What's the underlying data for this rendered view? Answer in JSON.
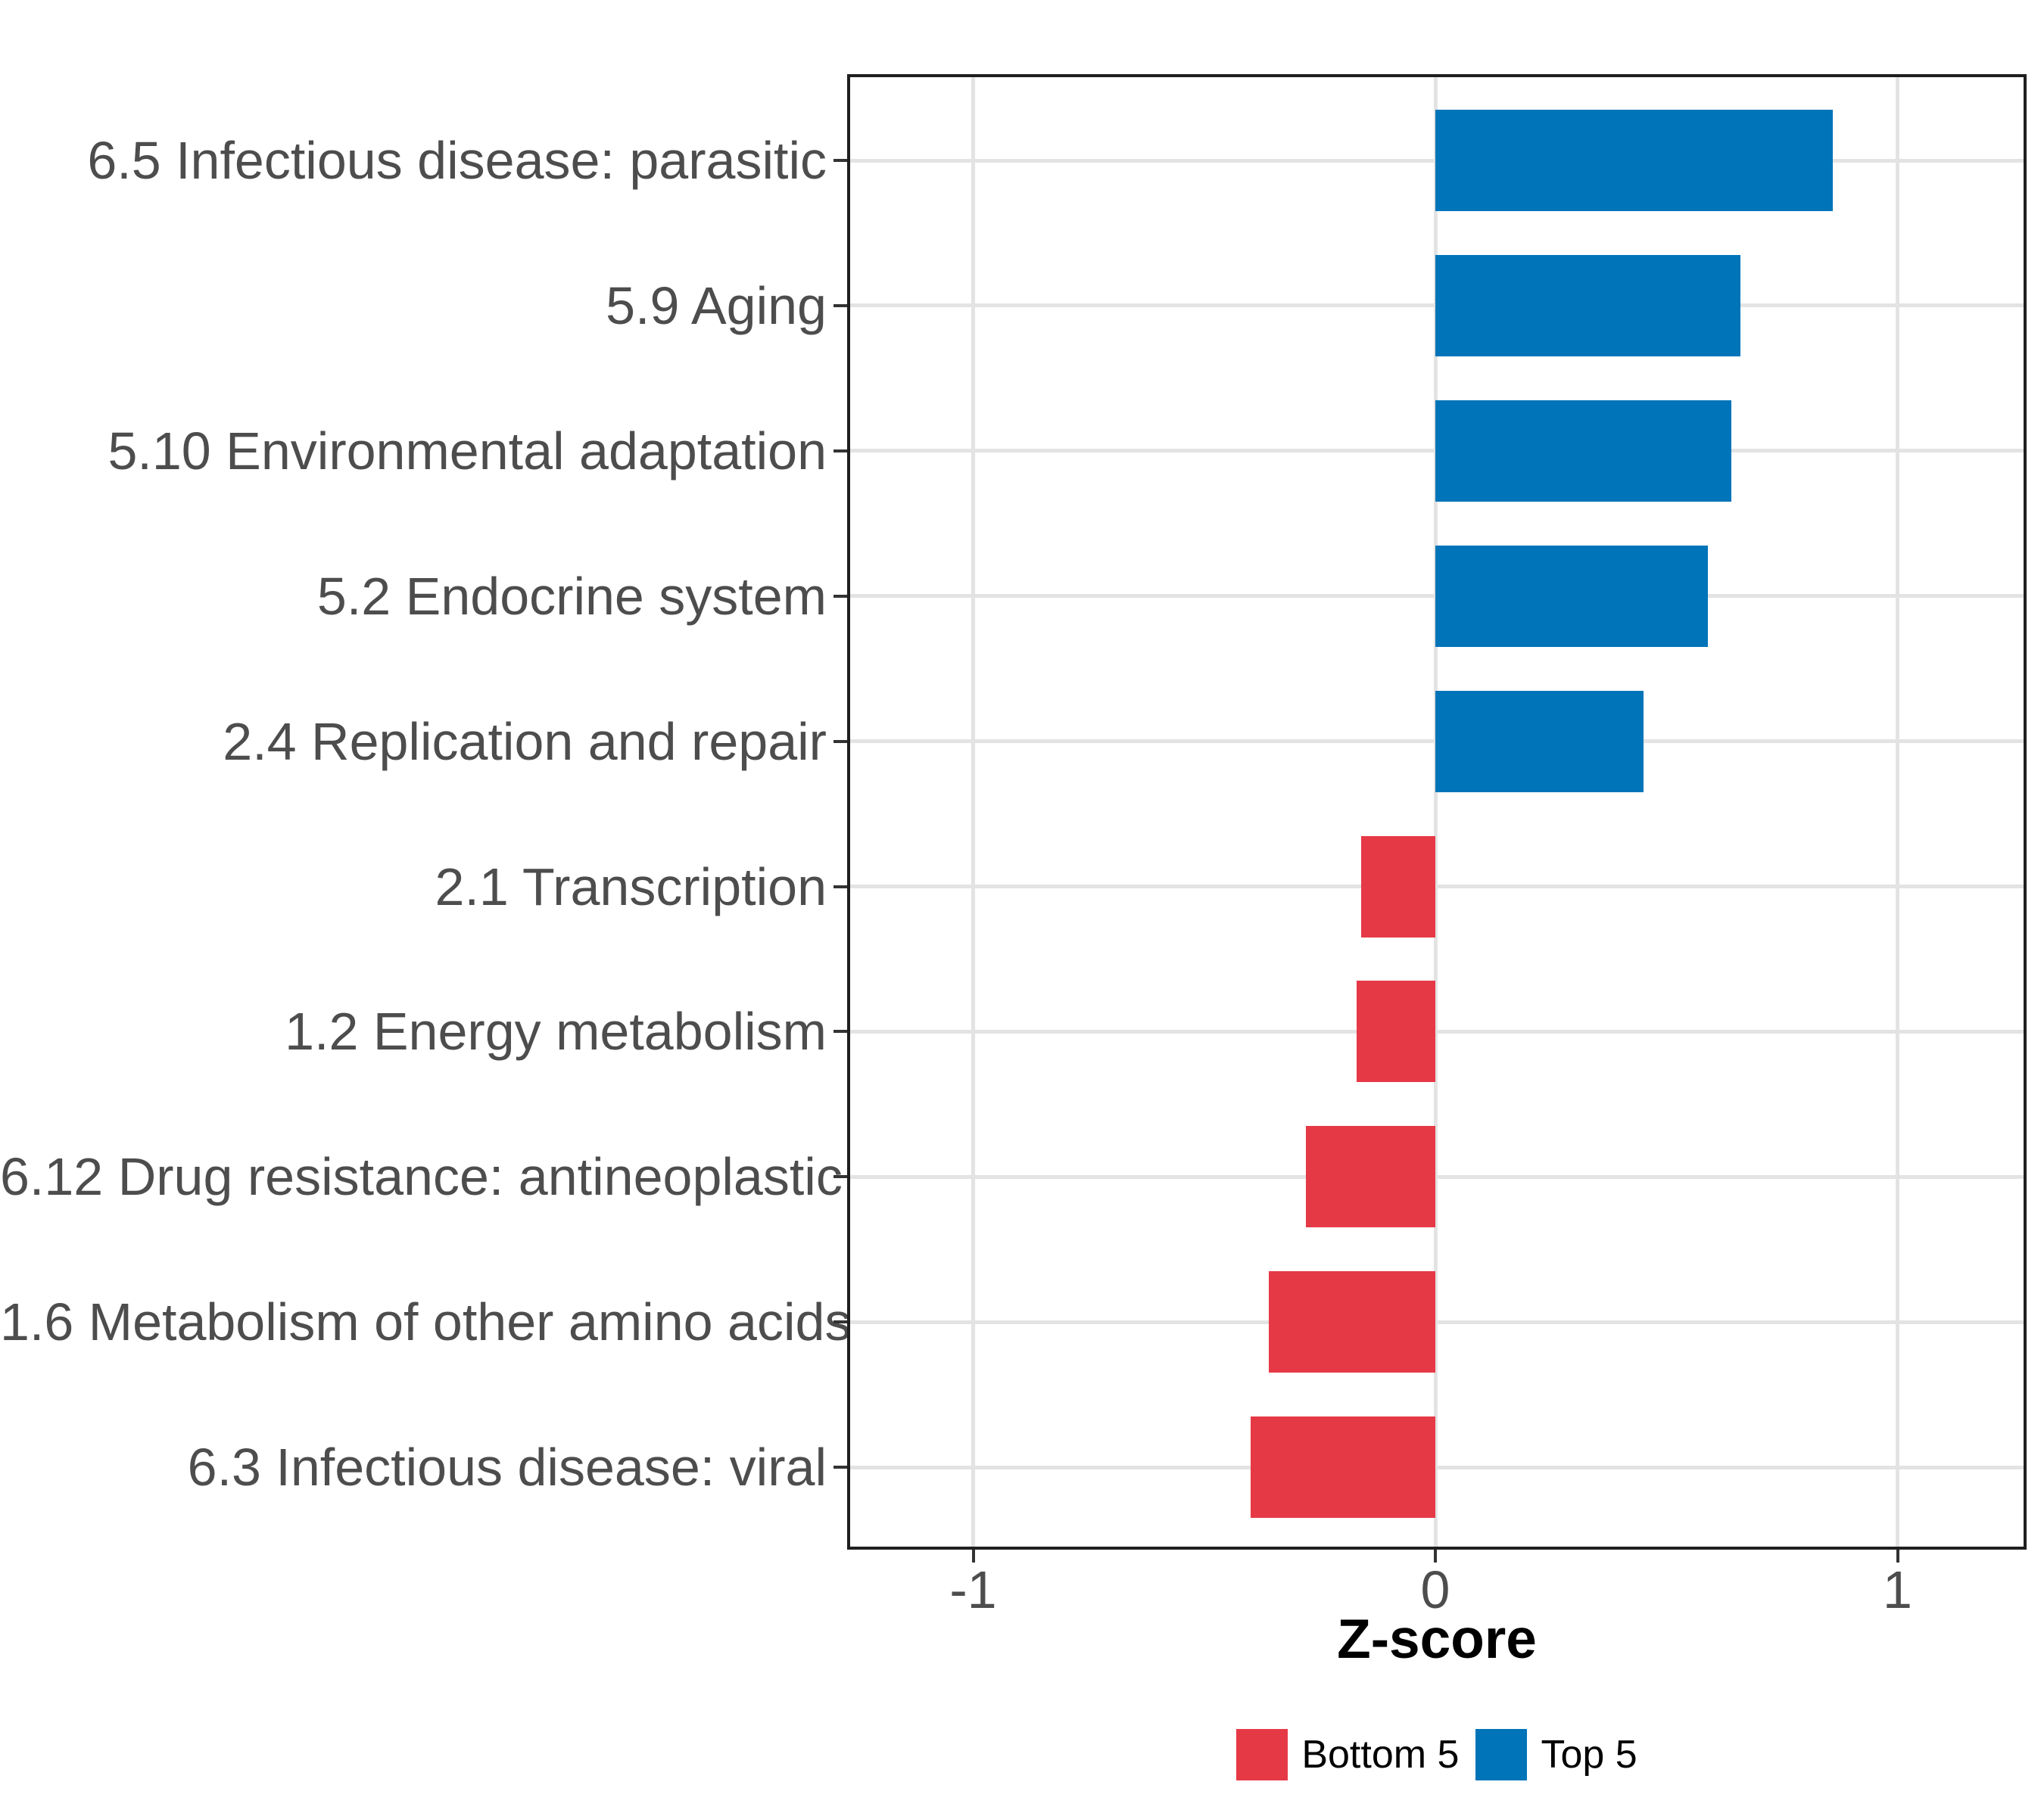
{
  "chart_data": {
    "type": "bar",
    "orientation": "horizontal",
    "title": "",
    "xlabel": "Z-score",
    "ylabel": "",
    "categories": [
      "6.5 Infectious disease: parasitic",
      "5.9 Aging",
      "5.10 Environmental adaptation",
      "5.2 Endocrine system",
      "2.4 Replication and repair",
      "2.1 Transcription",
      "1.2 Energy metabolism",
      "6.12 Drug resistance: antineoplastic",
      "1.6 Metabolism of other amino acids",
      "6.3 Infectious disease: viral"
    ],
    "values": [
      0.86,
      0.66,
      0.64,
      0.59,
      0.45,
      -0.16,
      -0.17,
      -0.28,
      -0.36,
      -0.4
    ],
    "groups": [
      "Top 5",
      "Top 5",
      "Top 5",
      "Top 5",
      "Top 5",
      "Bottom 5",
      "Bottom 5",
      "Bottom 5",
      "Bottom 5",
      "Bottom 5"
    ],
    "series": [
      {
        "name": "Bottom 5",
        "color": "#E63946"
      },
      {
        "name": "Top 5",
        "color": "#0074B8"
      }
    ],
    "x_ticks": [
      -1,
      0,
      1
    ],
    "x_tick_labels": [
      "-1",
      "0",
      "1"
    ],
    "xlim": [
      -1.27,
      1.28
    ],
    "grid": true,
    "legend_position": "bottom",
    "legend_entries": [
      "Bottom 5",
      "Top 5"
    ]
  },
  "style_colors": {
    "grid": "#E3E3E3",
    "axis_text": "#4D4D4D",
    "panel_border": "#1F1F1F",
    "tick": "#333333",
    "background": "#FFFFFF"
  }
}
